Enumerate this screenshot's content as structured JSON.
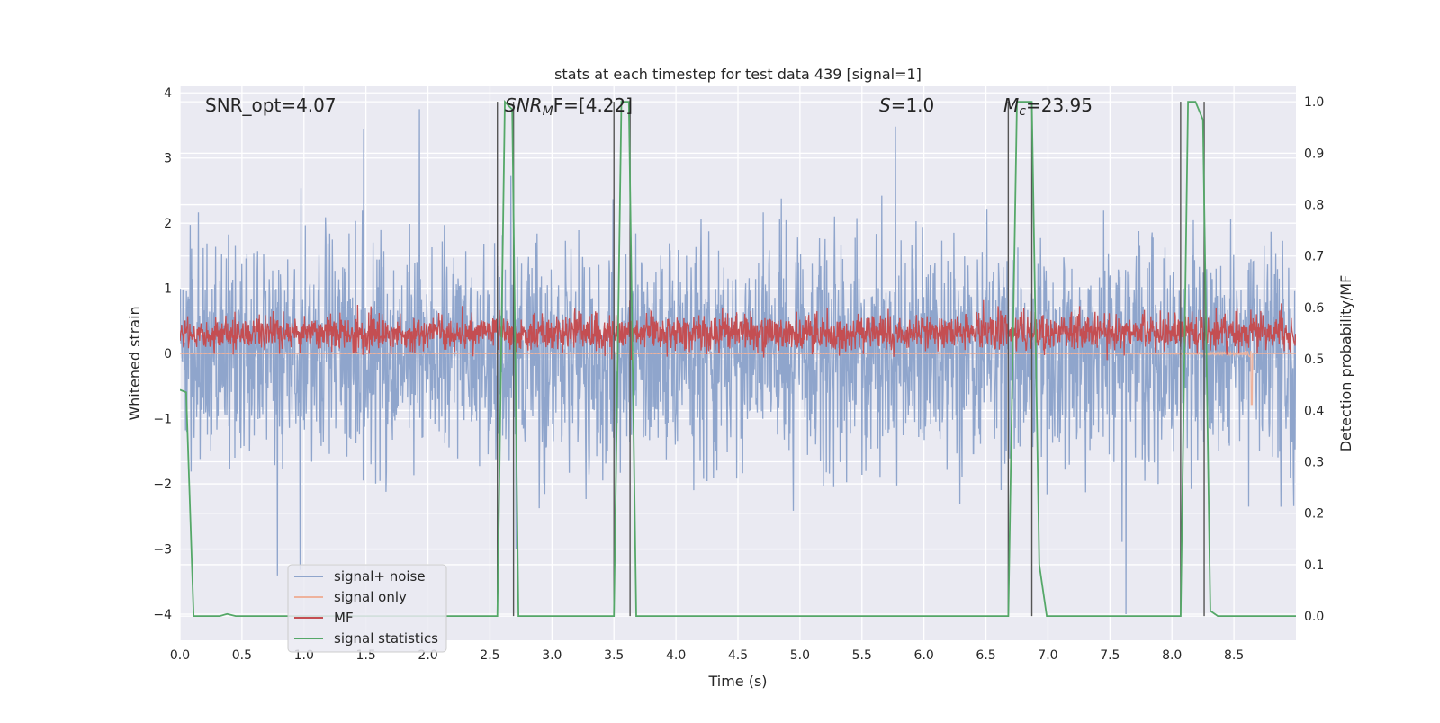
{
  "chart_data": {
    "type": "line",
    "title": "stats at each timestep for test data 439 [signal=1]",
    "xlabel": "Time (s)",
    "ylabel_left": "Whitened strain",
    "ylabel_right": "Detection probability/MF",
    "xlim": [
      0.0,
      9.0
    ],
    "ylim_left": [
      -4.4,
      4.1
    ],
    "ylim_right": [
      -0.047,
      1.03
    ],
    "x_ticks": [
      "0.0",
      "0.5",
      "1.0",
      "1.5",
      "2.0",
      "2.5",
      "3.0",
      "3.5",
      "4.0",
      "4.5",
      "5.0",
      "5.5",
      "6.0",
      "6.5",
      "7.0",
      "7.5",
      "8.0",
      "8.5"
    ],
    "y_ticks_left": [
      "−4",
      "−3",
      "−2",
      "−1",
      "0",
      "1",
      "2",
      "3",
      "4"
    ],
    "y_ticks_right": [
      "0.0",
      "0.1",
      "0.2",
      "0.3",
      "0.4",
      "0.5",
      "0.6",
      "0.7",
      "0.8",
      "0.9",
      "1.0"
    ],
    "grid": true,
    "legend_placement": "lower-left",
    "annotations": {
      "snr_opt": "SNR_opt=4.07",
      "snr_mf": "SNR",
      "snr_mf_sub": "M",
      "snr_mf_rest": "F=[4.22]",
      "s": "S",
      "s_rest": "=1.0",
      "mc": "M",
      "mc_sub": "c",
      "mc_rest": "=23.95"
    },
    "series": [
      {
        "name": "signal+ noise",
        "color": "#8fa5cc",
        "kind": "noise",
        "amplitude_sd": 0.85,
        "extremes": [
          [
            0.97,
            -3.32
          ],
          [
            7.63,
            -4.0
          ],
          [
            1.93,
            3.75
          ],
          [
            1.48,
            3.45
          ]
        ]
      },
      {
        "name": "signal only",
        "color": "#eeb29c",
        "kind": "chirp",
        "merger_time": 8.65,
        "peak": -0.78
      },
      {
        "name": "MF",
        "color": "#c44e52",
        "kind": "noise",
        "center": 0.32,
        "amplitude_sd": 0.14
      },
      {
        "name": "signal statistics",
        "color": "#55a868",
        "kind": "step",
        "x": [
          0.0,
          0.05,
          0.11,
          0.32,
          0.38,
          0.45,
          2.56,
          2.62,
          2.68,
          2.73,
          3.5,
          3.56,
          3.62,
          3.68,
          6.68,
          6.75,
          6.81,
          6.87,
          6.93,
          6.99,
          8.07,
          8.13,
          8.19,
          8.25,
          8.31,
          8.37,
          9.0
        ],
        "y": [
          0.44,
          0.435,
          0.0,
          0.0,
          0.004,
          0.0,
          0.0,
          1.0,
          0.985,
          0.0,
          0.0,
          1.0,
          1.0,
          0.0,
          0.0,
          1.0,
          1.0,
          1.0,
          0.1,
          0.0,
          0.0,
          1.0,
          1.0,
          0.965,
          0.01,
          0.0,
          0.0
        ]
      }
    ],
    "trigger_lines": [
      2.56,
      2.69,
      3.5,
      3.63,
      6.68,
      6.87,
      8.07,
      8.26
    ]
  }
}
